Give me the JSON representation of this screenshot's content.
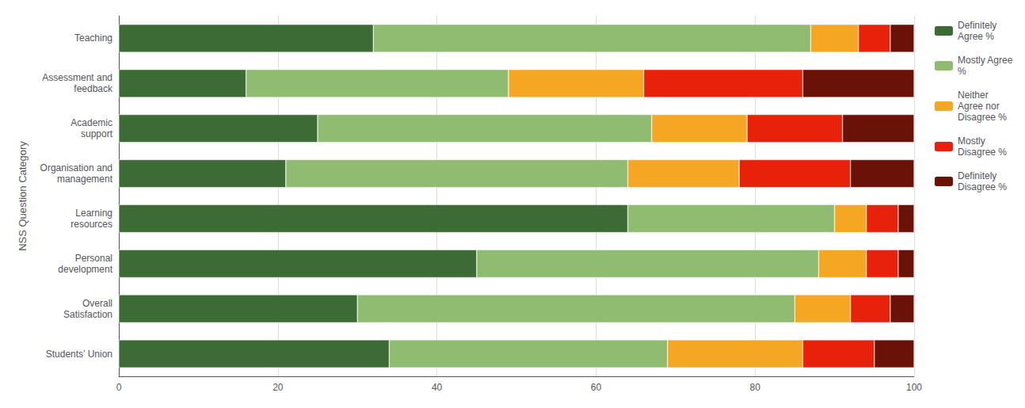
{
  "chart_data": {
    "type": "bar",
    "orientation": "horizontal",
    "stacked": true,
    "categories": [
      "Students’ Union",
      "Overall\nSatisfaction",
      "Personal\ndevelopment",
      "Learning\nresources",
      "Organisation and\nmanagement",
      "Academic\nsupport",
      "Assessment and\nfeedback",
      "Teaching"
    ],
    "series": [
      {
        "name": "Definitely\nAgree %",
        "color": "#3d6b35",
        "values": [
          34,
          30,
          45,
          64,
          21,
          25,
          16,
          32
        ]
      },
      {
        "name": "Mostly Agree\n%",
        "color": "#90bc72",
        "values": [
          35,
          55,
          43,
          26,
          43,
          42,
          33,
          55
        ]
      },
      {
        "name": "Neither\nAgree nor\nDisagree %",
        "color": "#f5a623",
        "values": [
          17,
          7,
          6,
          4,
          14,
          12,
          17,
          6
        ]
      },
      {
        "name": "Mostly\nDisagree %",
        "color": "#e8220a",
        "values": [
          9,
          5,
          4,
          4,
          14,
          12,
          20,
          4
        ]
      },
      {
        "name": "Definitely\nDisagree %",
        "color": "#6b1208",
        "values": [
          5,
          3,
          2,
          2,
          8,
          9,
          14,
          3
        ]
      }
    ],
    "ylabel": "NSS Question Category",
    "xlim": [
      0,
      100
    ],
    "xticks": [
      0,
      20,
      40,
      60,
      80,
      100
    ],
    "grid": true,
    "legend": "upper right"
  }
}
